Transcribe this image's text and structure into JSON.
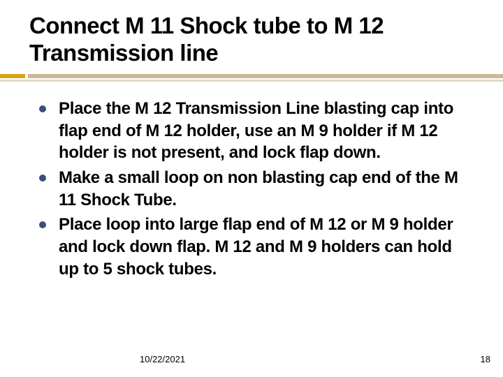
{
  "slide": {
    "title": "Connect M 11 Shock tube to   M 12 Transmission line",
    "title_color": "#000000",
    "title_fontsize": 33,
    "bullets": [
      "Place the M 12 Transmission Line blasting cap into flap end of M 12 holder, use an M 9 holder if M 12 holder is not present, and lock flap down.",
      "Make a small loop on non blasting cap end of the M 11 Shock Tube.",
      " Place loop into large flap end of M 12 or M 9 holder and lock down flap.  M 12 and M 9 holders can hold up to 5 shock tubes."
    ],
    "bullet_fontsize": 24,
    "bullet_color": "#000000",
    "bullet_marker_color": "#3b4e7a",
    "rule_accent_color": "#d6a419",
    "rule_main_color": "#caba93",
    "background_color": "#ffffff",
    "footer": {
      "date": "10/22/2021",
      "page": "18"
    }
  }
}
